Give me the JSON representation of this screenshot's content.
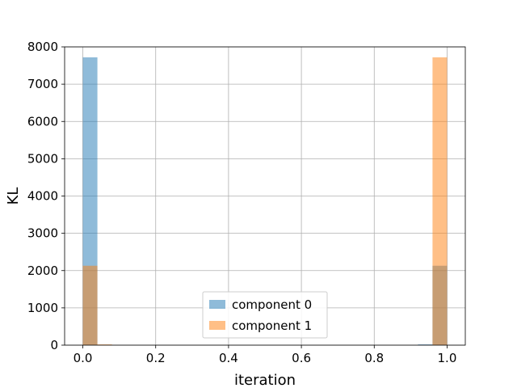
{
  "chart_data": {
    "type": "bar",
    "xlabel": "iteration",
    "ylabel": "KL",
    "xlim": [
      -0.05,
      1.05
    ],
    "ylim": [
      0,
      8000
    ],
    "xticks": [
      0.0,
      0.2,
      0.4,
      0.6,
      0.8,
      1.0
    ],
    "xtick_labels": [
      "0.0",
      "0.2",
      "0.4",
      "0.6",
      "0.8",
      "1.0"
    ],
    "yticks": [
      0,
      1000,
      2000,
      3000,
      4000,
      5000,
      6000,
      7000,
      8000
    ],
    "ytick_labels": [
      "0",
      "1000",
      "2000",
      "3000",
      "4000",
      "5000",
      "6000",
      "7000",
      "8000"
    ],
    "grid": true,
    "legend_position": "bottom-center",
    "bin_width": 0.04,
    "series": [
      {
        "name": "component 0",
        "color": "#1f77b4",
        "opacity": 0.5,
        "bins": [
          {
            "x0": 0.0,
            "x1": 0.04,
            "value": 7720
          },
          {
            "x0": 0.92,
            "x1": 0.96,
            "value": 20
          },
          {
            "x0": 0.96,
            "x1": 1.0,
            "value": 2130
          }
        ]
      },
      {
        "name": "component 1",
        "color": "#ff7f0e",
        "opacity": 0.5,
        "bins": [
          {
            "x0": 0.0,
            "x1": 0.04,
            "value": 2130
          },
          {
            "x0": 0.04,
            "x1": 0.08,
            "value": 20
          },
          {
            "x0": 0.96,
            "x1": 1.0,
            "value": 7720
          }
        ]
      }
    ]
  }
}
